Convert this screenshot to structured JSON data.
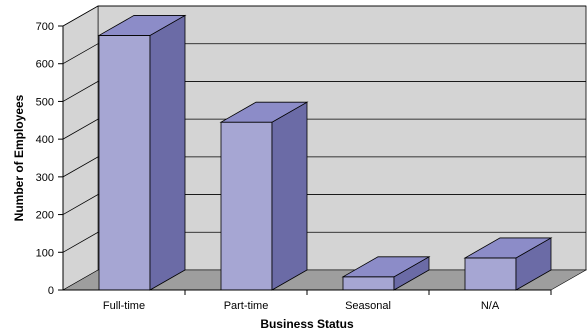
{
  "chart_data": {
    "type": "bar",
    "categories": [
      "Full-time",
      "Part-time",
      "Seasonal",
      "N/A"
    ],
    "values": [
      675,
      445,
      35,
      85
    ],
    "xlabel": "Business Status",
    "ylabel": "Number of Employees",
    "ylim": [
      0,
      700
    ],
    "yticks": [
      0,
      100,
      200,
      300,
      400,
      500,
      600,
      700
    ],
    "grid": true,
    "style": "3d-column",
    "colors": {
      "bar_front": "#a6a6d3",
      "bar_side": "#6b6ba6",
      "bar_top": "#8c8cc8",
      "wall": "#d4d4d4",
      "floor": "#9e9e9e",
      "gridline": "#000000"
    }
  }
}
